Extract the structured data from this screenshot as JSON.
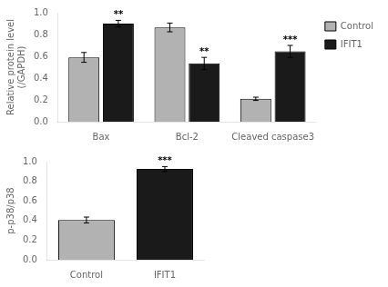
{
  "chart_data": [
    {
      "type": "bar",
      "categories": [
        "Bax",
        "Bcl-2",
        "Cleaved caspase3"
      ],
      "series": [
        {
          "name": "Control",
          "color": "#b2b2b2",
          "values": [
            0.59,
            0.865,
            0.21
          ],
          "errors": [
            0.045,
            0.04,
            0.015
          ]
        },
        {
          "name": "IFIT1",
          "color": "#1a1a1a",
          "values": [
            0.9,
            0.535,
            0.645
          ],
          "errors": [
            0.03,
            0.055,
            0.055
          ],
          "annotations": [
            "**",
            "**",
            "***"
          ]
        }
      ],
      "ylabel": "Relative protein level\n(/GAPDH)",
      "ylim": [
        0,
        1.0
      ],
      "yticks": [
        {
          "value": 0,
          "label": "0.0"
        },
        0.2,
        0.4,
        0.6,
        0.8,
        {
          "value": 1.0,
          "label": "1.0"
        }
      ],
      "legend": "upper right",
      "grid": false
    },
    {
      "type": "bar",
      "categories": [
        "Control",
        "IFIT1"
      ],
      "values": [
        0.405,
        0.925
      ],
      "errors": [
        0.03,
        0.025
      ],
      "colors": [
        "#b2b2b2",
        "#1a1a1a"
      ],
      "annotations": [
        null,
        "***"
      ],
      "ylabel": "p-p38/p38",
      "ylim": [
        0,
        1.0
      ],
      "yticks": [
        {
          "value": 0,
          "label": "0.0"
        },
        0.2,
        0.4,
        0.6,
        0.8,
        {
          "value": 1.0,
          "label": "1.0"
        }
      ],
      "grid": false
    }
  ]
}
